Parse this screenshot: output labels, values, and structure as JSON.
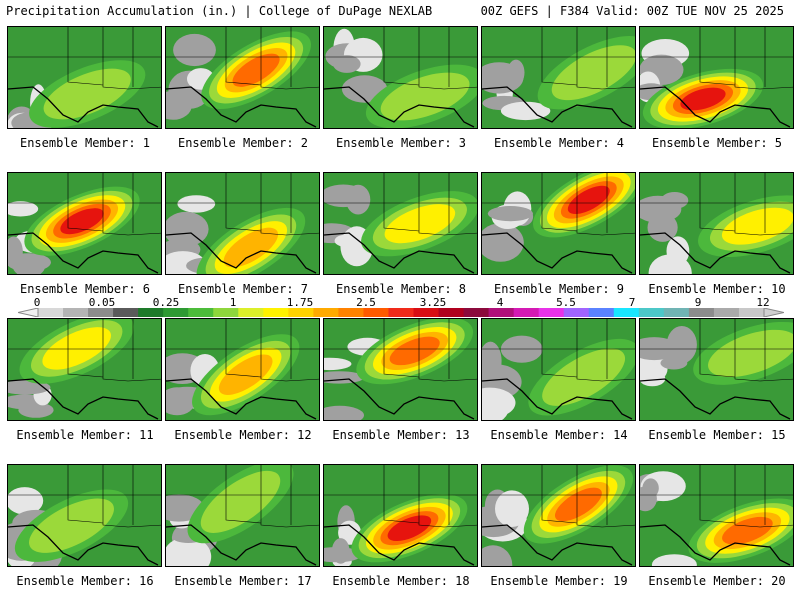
{
  "header": {
    "left": "Precipitation Accumulation (in.) | College of DuPage NEXLAB",
    "right": "00Z GEFS | F384 Valid: 00Z TUE NOV 25 2025"
  },
  "panels": [
    {
      "label": "Ensemble Member: 1",
      "max_level": 3
    },
    {
      "label": "Ensemble Member: 2",
      "max_level": 6
    },
    {
      "label": "Ensemble Member: 3",
      "max_level": 3
    },
    {
      "label": "Ensemble Member: 4",
      "max_level": 3
    },
    {
      "label": "Ensemble Member: 5",
      "max_level": 7
    },
    {
      "label": "Ensemble Member: 6",
      "max_level": 7
    },
    {
      "label": "Ensemble Member: 7",
      "max_level": 5
    },
    {
      "label": "Ensemble Member: 8",
      "max_level": 4
    },
    {
      "label": "Ensemble Member: 9",
      "max_level": 7
    },
    {
      "label": "Ensemble Member: 10",
      "max_level": 4
    },
    {
      "label": "Ensemble Member: 11",
      "max_level": 4
    },
    {
      "label": "Ensemble Member: 12",
      "max_level": 5
    },
    {
      "label": "Ensemble Member: 13",
      "max_level": 6
    },
    {
      "label": "Ensemble Member: 14",
      "max_level": 3
    },
    {
      "label": "Ensemble Member: 15",
      "max_level": 3
    },
    {
      "label": "Ensemble Member: 16",
      "max_level": 3
    },
    {
      "label": "Ensemble Member: 17",
      "max_level": 3
    },
    {
      "label": "Ensemble Member: 18",
      "max_level": 7
    },
    {
      "label": "Ensemble Member: 19",
      "max_level": 6
    },
    {
      "label": "Ensemble Member: 20",
      "max_level": 6
    }
  ],
  "colorbar": {
    "tick_labels": [
      "0",
      "0.05",
      "0.25",
      "1",
      "1.75",
      "2.5",
      "3.25",
      "4",
      "5.5",
      "7",
      "9",
      "12"
    ],
    "colors": [
      "#d8d8d8",
      "#b4b4b4",
      "#8c8c8c",
      "#5a5a5a",
      "#1e7a2a",
      "#2e9a33",
      "#4cbc3a",
      "#8ed63c",
      "#dcef2a",
      "#fff200",
      "#ffd200",
      "#ffaa00",
      "#ff8200",
      "#ff5a00",
      "#f02a1a",
      "#d80e14",
      "#b0001e",
      "#8c0a3c",
      "#b0107a",
      "#d41ab4",
      "#e832e8",
      "#a064ff",
      "#5a82ff",
      "#19e6ff",
      "#4cc8c8",
      "#70b4b4",
      "#8c8c8c",
      "#aaaaaa",
      "#c8c8c8"
    ]
  }
}
